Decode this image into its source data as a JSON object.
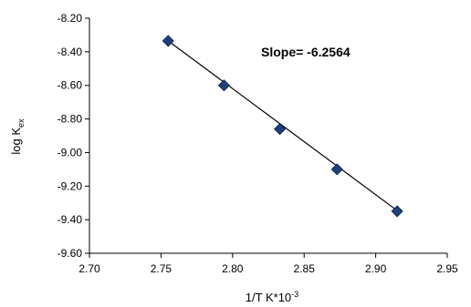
{
  "chart_data": {
    "type": "scatter",
    "title": "",
    "xlabel": "1/T K",
    "xlabel_suffix": "*10",
    "xlabel_superscript": "-3",
    "ylabel": "log K",
    "ylabel_subscript": "ex",
    "xlim": [
      2.7,
      2.95
    ],
    "ylim": [
      -9.6,
      -8.2
    ],
    "x_ticks": [
      "2.70",
      "2.75",
      "2.80",
      "2.85",
      "2.90",
      "2.95"
    ],
    "y_ticks": [
      "-8.20",
      "-8.40",
      "-8.60",
      "-8.80",
      "-9.00",
      "-9.20",
      "-9.40",
      "-9.60"
    ],
    "grid": false,
    "legend": "none",
    "annotation": "Slope= -6.2564",
    "marker_color": "#1F3F7A",
    "line_color": "#000000",
    "points": [
      {
        "x": 2.755,
        "y": -8.335
      },
      {
        "x": 2.794,
        "y": -8.6
      },
      {
        "x": 2.833,
        "y": -8.86
      },
      {
        "x": 2.873,
        "y": -9.1
      },
      {
        "x": 2.915,
        "y": -9.35
      }
    ],
    "trendline": {
      "x": [
        2.755,
        2.915
      ],
      "y": [
        -8.335,
        -9.346
      ]
    }
  }
}
